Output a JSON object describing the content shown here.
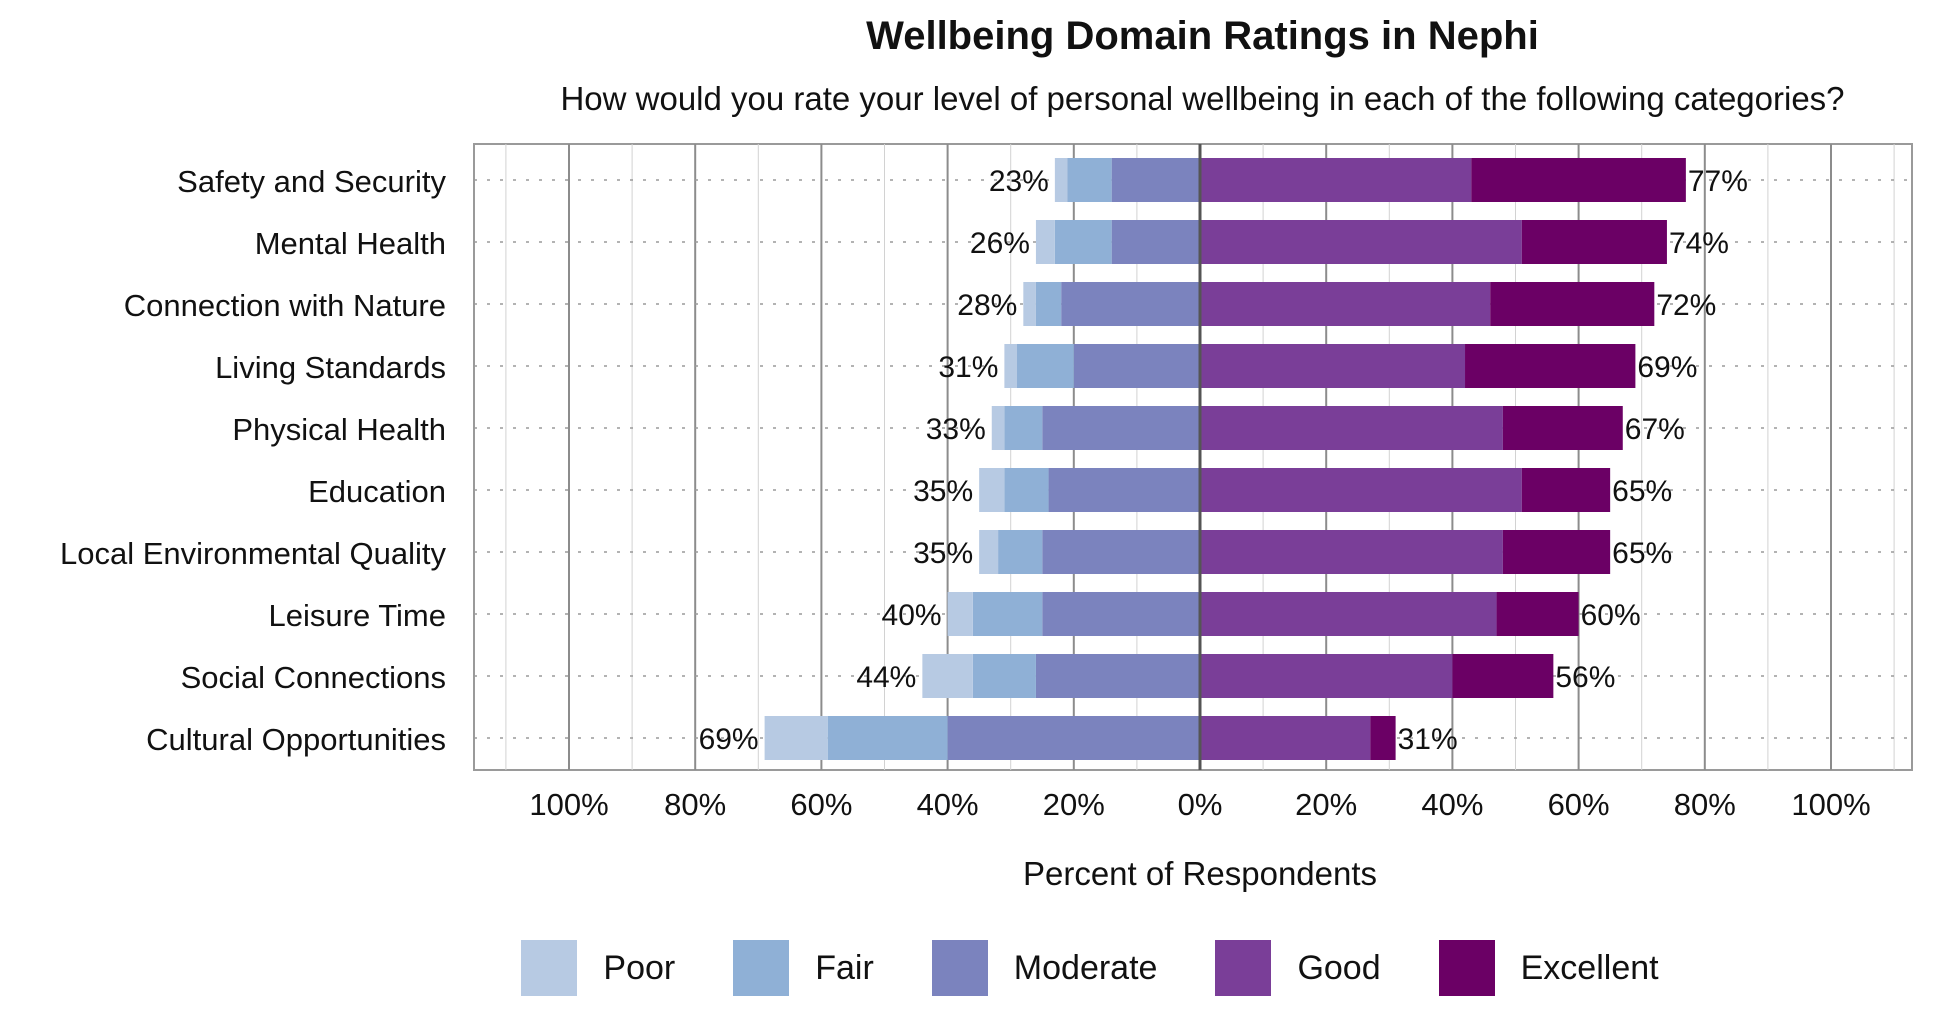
{
  "chart_data": {
    "type": "bar",
    "orientation": "horizontal",
    "stacked": true,
    "diverging": true,
    "title": "Wellbeing Domain Ratings in Nephi",
    "subtitle": "How would you rate your level of personal wellbeing in each of the following categories?",
    "xlabel": "Percent of Respondents",
    "ylabel": "",
    "xlim": [
      -100,
      100
    ],
    "x_tick_values": [
      -100,
      -80,
      -60,
      -40,
      -20,
      0,
      20,
      40,
      60,
      80,
      100
    ],
    "x_tick_labels": [
      "100%",
      "80%",
      "60%",
      "40%",
      "20%",
      "0%",
      "20%",
      "40%",
      "60%",
      "80%",
      "100%"
    ],
    "grid": true,
    "legend_position": "bottom",
    "categories": [
      "Safety and Security",
      "Mental Health",
      "Connection with Nature",
      "Living Standards",
      "Physical Health",
      "Education",
      "Local Environmental Quality",
      "Leisure Time",
      "Social Connections",
      "Cultural Opportunities"
    ],
    "series": [
      {
        "name": "Poor",
        "side": "negative",
        "color": "#b7cae3",
        "values": [
          2,
          3,
          2,
          2,
          2,
          4,
          3,
          4,
          8,
          10
        ]
      },
      {
        "name": "Fair",
        "side": "negative",
        "color": "#8fb0d6",
        "values": [
          7,
          9,
          4,
          9,
          6,
          7,
          7,
          11,
          10,
          19
        ]
      },
      {
        "name": "Moderate",
        "side": "negative",
        "color": "#7b83be",
        "values": [
          14,
          14,
          22,
          20,
          25,
          24,
          25,
          25,
          26,
          40
        ]
      },
      {
        "name": "Good",
        "side": "positive",
        "color": "#7a3e98",
        "values": [
          43,
          51,
          46,
          42,
          48,
          51,
          48,
          47,
          40,
          27
        ]
      },
      {
        "name": "Excellent",
        "side": "positive",
        "color": "#6b0065",
        "values": [
          34,
          23,
          26,
          27,
          19,
          14,
          17,
          13,
          16,
          4
        ]
      }
    ],
    "negative_totals": [
      "23%",
      "26%",
      "28%",
      "31%",
      "33%",
      "35%",
      "35%",
      "40%",
      "44%",
      "69%"
    ],
    "positive_totals": [
      "77%",
      "74%",
      "72%",
      "69%",
      "67%",
      "65%",
      "65%",
      "60%",
      "56%",
      "31%"
    ]
  }
}
